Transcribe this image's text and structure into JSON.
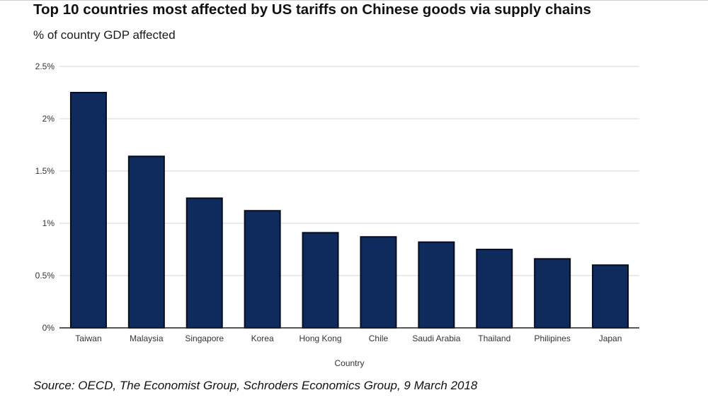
{
  "title": "Top 10 countries most affected by US tariffs on Chinese goods via supply chains",
  "source": "Source: OECD, The Economist Group, Schroders Economics Group, 9 March 2018",
  "colors": {
    "bar_fill": "#0f2a5c",
    "bar_stroke": "#050d1e",
    "grid": "#d6d6d6",
    "baseline": "#222222"
  },
  "chart_data": {
    "type": "bar",
    "title": "Top 10 countries most affected by US tariffs on Chinese goods via supply chains",
    "ylabel": "% of country GDP affected",
    "xlabel": "Country",
    "categories": [
      "Taiwan",
      "Malaysia",
      "Singapore",
      "Korea",
      "Hong Kong",
      "Chile",
      "Saudi Arabia",
      "Thailand",
      "Philipines",
      "Japan"
    ],
    "values": [
      2.25,
      1.64,
      1.24,
      1.12,
      0.91,
      0.87,
      0.82,
      0.75,
      0.66,
      0.6
    ],
    "ylim": [
      0,
      2.5
    ],
    "yticks": [
      {
        "value": 0,
        "label": "0%"
      },
      {
        "value": 0.5,
        "label": "0.5%"
      },
      {
        "value": 1,
        "label": "1%"
      },
      {
        "value": 1.5,
        "label": "1.5%"
      },
      {
        "value": 2,
        "label": "2%"
      },
      {
        "value": 2.5,
        "label": "2.5%"
      }
    ],
    "grid": true,
    "legend": "none"
  }
}
